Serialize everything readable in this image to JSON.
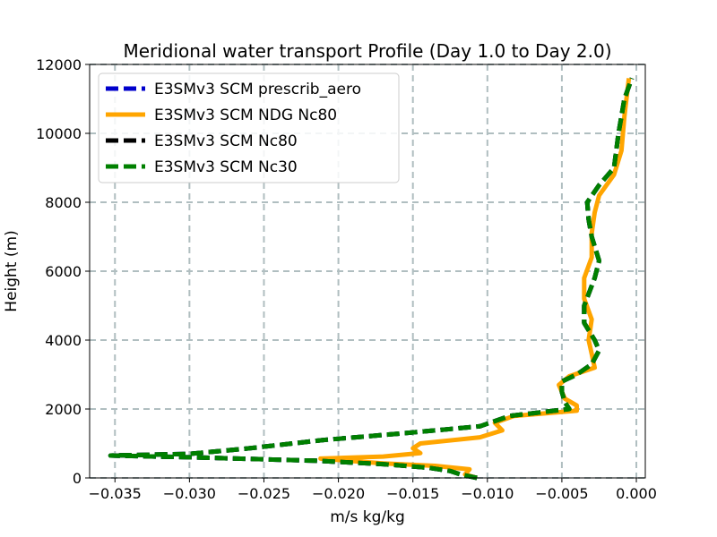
{
  "chart_data": {
    "type": "line",
    "title": "Meridional water transport Profile (Day 1.0 to Day 2.0)",
    "xlabel": "m/s kg/kg",
    "ylabel": "Height (m)",
    "xlim": [
      -0.0367,
      0.0006
    ],
    "ylim": [
      0,
      12000
    ],
    "xticks": [
      -0.035,
      -0.03,
      -0.025,
      -0.02,
      -0.015,
      -0.01,
      -0.005,
      0.0
    ],
    "xtick_labels": [
      "−0.035",
      "−0.030",
      "−0.025",
      "−0.020",
      "−0.015",
      "−0.010",
      "−0.005",
      "0.000"
    ],
    "yticks": [
      0,
      2000,
      4000,
      6000,
      8000,
      10000,
      12000
    ],
    "ytick_labels": [
      "0",
      "2000",
      "4000",
      "6000",
      "8000",
      "10000",
      "12000"
    ],
    "grid": true,
    "legend_position": "top-left",
    "series": [
      {
        "name": "E3SMv3 SCM prescrib_aero",
        "color": "#0000cc",
        "style": "dashed",
        "points": [
          [
            -0.0107,
            0
          ],
          [
            -0.0118,
            100
          ],
          [
            -0.0125,
            200
          ],
          [
            -0.014,
            300
          ],
          [
            -0.017,
            400
          ],
          [
            -0.0215,
            500
          ],
          [
            -0.03,
            600
          ],
          [
            -0.0353,
            650
          ],
          [
            -0.03,
            700
          ],
          [
            -0.0262,
            850
          ],
          [
            -0.021,
            1100
          ],
          [
            -0.0155,
            1300
          ],
          [
            -0.0105,
            1500
          ],
          [
            -0.0085,
            1800
          ],
          [
            -0.0045,
            2000
          ],
          [
            -0.0048,
            2200
          ],
          [
            -0.005,
            2500
          ],
          [
            -0.005,
            2800
          ],
          [
            -0.004,
            3000
          ],
          [
            -0.003,
            3300
          ],
          [
            -0.0025,
            3700
          ],
          [
            -0.0028,
            4000
          ],
          [
            -0.0035,
            4500
          ],
          [
            -0.0035,
            5000
          ],
          [
            -0.0028,
            5800
          ],
          [
            -0.0025,
            6300
          ],
          [
            -0.003,
            7000
          ],
          [
            -0.0032,
            7500
          ],
          [
            -0.0033,
            8000
          ],
          [
            -0.0025,
            8500
          ],
          [
            -0.0015,
            9000
          ],
          [
            -0.0012,
            10000
          ],
          [
            -0.0008,
            11000
          ],
          [
            -0.0003,
            11600
          ]
        ]
      },
      {
        "name": "E3SMv3 SCM NDG Nc80",
        "color": "#ffa500",
        "style": "solid",
        "points": [
          [
            -0.0107,
            0
          ],
          [
            -0.0115,
            100
          ],
          [
            -0.0112,
            250
          ],
          [
            -0.0135,
            350
          ],
          [
            -0.017,
            420
          ],
          [
            -0.0212,
            560
          ],
          [
            -0.017,
            620
          ],
          [
            -0.0145,
            720
          ],
          [
            -0.015,
            860
          ],
          [
            -0.0145,
            1000
          ],
          [
            -0.0105,
            1180
          ],
          [
            -0.009,
            1380
          ],
          [
            -0.0095,
            1600
          ],
          [
            -0.0082,
            1800
          ],
          [
            -0.004,
            1950
          ],
          [
            -0.004,
            2100
          ],
          [
            -0.0048,
            2300
          ],
          [
            -0.0052,
            2700
          ],
          [
            -0.0045,
            2950
          ],
          [
            -0.0028,
            3200
          ],
          [
            -0.003,
            3600
          ],
          [
            -0.0032,
            4000
          ],
          [
            -0.003,
            4600
          ],
          [
            -0.0035,
            5200
          ],
          [
            -0.0035,
            5800
          ],
          [
            -0.003,
            6400
          ],
          [
            -0.003,
            7100
          ],
          [
            -0.0028,
            7700
          ],
          [
            -0.0025,
            8200
          ],
          [
            -0.0015,
            8800
          ],
          [
            -0.001,
            9500
          ],
          [
            -0.0008,
            10500
          ],
          [
            -0.0005,
            11600
          ]
        ]
      },
      {
        "name": "E3SMv3 SCM Nc80",
        "color": "#000000",
        "style": "dashed",
        "points": [
          [
            -0.0107,
            0
          ],
          [
            -0.0118,
            100
          ],
          [
            -0.0125,
            200
          ],
          [
            -0.014,
            300
          ],
          [
            -0.017,
            400
          ],
          [
            -0.0215,
            500
          ],
          [
            -0.03,
            600
          ],
          [
            -0.0353,
            650
          ],
          [
            -0.03,
            700
          ],
          [
            -0.0262,
            850
          ],
          [
            -0.021,
            1100
          ],
          [
            -0.0155,
            1300
          ],
          [
            -0.0105,
            1500
          ],
          [
            -0.0085,
            1800
          ],
          [
            -0.0045,
            2000
          ],
          [
            -0.0048,
            2200
          ],
          [
            -0.005,
            2500
          ],
          [
            -0.005,
            2800
          ],
          [
            -0.004,
            3000
          ],
          [
            -0.003,
            3300
          ],
          [
            -0.0025,
            3700
          ],
          [
            -0.0028,
            4000
          ],
          [
            -0.0035,
            4500
          ],
          [
            -0.0035,
            5000
          ],
          [
            -0.0028,
            5800
          ],
          [
            -0.0025,
            6300
          ],
          [
            -0.003,
            7000
          ],
          [
            -0.0032,
            7500
          ],
          [
            -0.0033,
            8000
          ],
          [
            -0.0025,
            8500
          ],
          [
            -0.0015,
            9000
          ],
          [
            -0.0012,
            10000
          ],
          [
            -0.0008,
            11000
          ],
          [
            -0.0003,
            11600
          ]
        ]
      },
      {
        "name": "E3SMv3 SCM Nc30",
        "color": "#008000",
        "style": "dashed",
        "points": [
          [
            -0.0107,
            0
          ],
          [
            -0.0118,
            100
          ],
          [
            -0.0125,
            200
          ],
          [
            -0.014,
            300
          ],
          [
            -0.017,
            400
          ],
          [
            -0.0215,
            500
          ],
          [
            -0.03,
            600
          ],
          [
            -0.0353,
            650
          ],
          [
            -0.03,
            700
          ],
          [
            -0.0262,
            850
          ],
          [
            -0.021,
            1100
          ],
          [
            -0.0155,
            1300
          ],
          [
            -0.0105,
            1500
          ],
          [
            -0.0085,
            1800
          ],
          [
            -0.0045,
            2000
          ],
          [
            -0.0048,
            2200
          ],
          [
            -0.005,
            2500
          ],
          [
            -0.005,
            2800
          ],
          [
            -0.004,
            3000
          ],
          [
            -0.003,
            3300
          ],
          [
            -0.0025,
            3700
          ],
          [
            -0.0028,
            4000
          ],
          [
            -0.0035,
            4500
          ],
          [
            -0.0035,
            5000
          ],
          [
            -0.0028,
            5800
          ],
          [
            -0.0025,
            6300
          ],
          [
            -0.003,
            7000
          ],
          [
            -0.0032,
            7500
          ],
          [
            -0.0033,
            8000
          ],
          [
            -0.0025,
            8500
          ],
          [
            -0.0015,
            9000
          ],
          [
            -0.0012,
            10000
          ],
          [
            -0.0008,
            11000
          ],
          [
            -0.0003,
            11600
          ]
        ]
      }
    ]
  }
}
